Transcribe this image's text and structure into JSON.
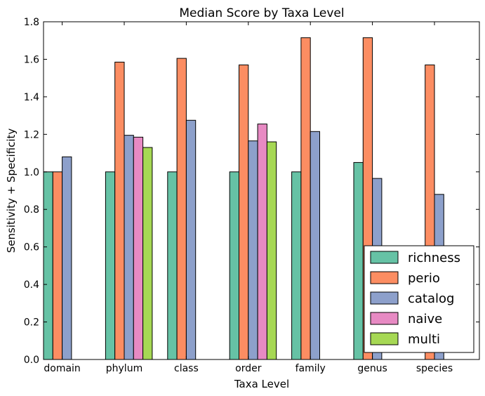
{
  "chart_data": {
    "type": "bar",
    "title": "Median Score by Taxa Level",
    "xlabel": "Taxa Level",
    "ylabel": "Sensitivity + Specificity",
    "ylim": [
      0,
      1.8
    ],
    "yticks": [
      "0.0",
      "0.2",
      "0.4",
      "0.6",
      "0.8",
      "1.0",
      "1.2",
      "1.4",
      "1.6",
      "1.8"
    ],
    "categories": [
      "domain",
      "phylum",
      "class",
      "order",
      "family",
      "genus",
      "species"
    ],
    "series": [
      {
        "name": "richness",
        "color": "#66c2a5",
        "values": [
          1.0,
          1.0,
          1.0,
          1.0,
          1.0,
          1.05,
          0
        ]
      },
      {
        "name": "perio",
        "color": "#fc8d62",
        "values": [
          1.0,
          1.585,
          1.605,
          1.57,
          1.715,
          1.715,
          1.57
        ]
      },
      {
        "name": "catalog",
        "color": "#8da0cb",
        "values": [
          1.08,
          1.195,
          1.275,
          1.165,
          1.215,
          0.965,
          0.88
        ]
      },
      {
        "name": "naive",
        "color": "#e78ac3",
        "values": [
          0,
          1.185,
          0,
          1.255,
          0,
          0,
          0
        ]
      },
      {
        "name": "multi",
        "color": "#a6d854",
        "values": [
          0,
          1.13,
          0,
          1.16,
          0,
          0,
          0
        ]
      }
    ],
    "legend_position": "lower-right",
    "grid": false
  }
}
